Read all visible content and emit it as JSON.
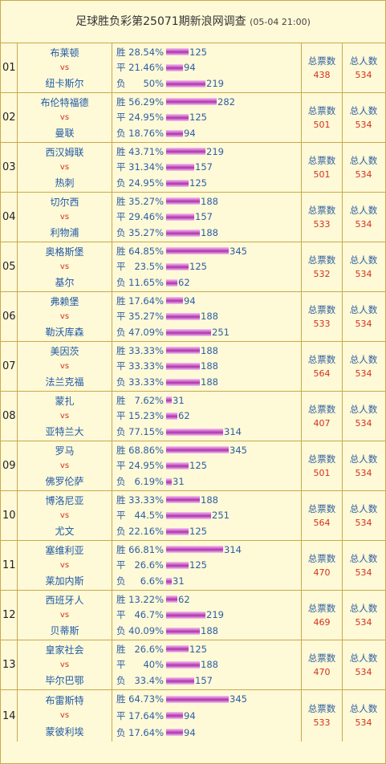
{
  "header": {
    "title": "足球胜负彩第25071期新浪网调查",
    "time": "(05-04 21:00)"
  },
  "labels": {
    "win": "胜",
    "draw": "平",
    "loss": "负",
    "vs": "vs",
    "total_votes": "总票数",
    "total_people": "总人数"
  },
  "matches": [
    {
      "no": "01",
      "home": "布莱顿",
      "away": "纽卡斯尔",
      "win_pct": "28.54%",
      "win": 125,
      "draw_pct": "21.46%",
      "draw": 94,
      "loss_pct": "50%",
      "loss": 219,
      "votes": "438",
      "people": "534"
    },
    {
      "no": "02",
      "home": "布伦特福德",
      "away": "曼联",
      "win_pct": "56.29%",
      "win": 282,
      "draw_pct": "24.95%",
      "draw": 125,
      "loss_pct": "18.76%",
      "loss": 94,
      "votes": "501",
      "people": "534"
    },
    {
      "no": "03",
      "home": "西汉姆联",
      "away": "热刺",
      "win_pct": "43.71%",
      "win": 219,
      "draw_pct": "31.34%",
      "draw": 157,
      "loss_pct": "24.95%",
      "loss": 125,
      "votes": "501",
      "people": "534"
    },
    {
      "no": "04",
      "home": "切尔西",
      "away": "利物浦",
      "win_pct": "35.27%",
      "win": 188,
      "draw_pct": "29.46%",
      "draw": 157,
      "loss_pct": "35.27%",
      "loss": 188,
      "votes": "533",
      "people": "534"
    },
    {
      "no": "05",
      "home": "奥格斯堡",
      "away": "基尔",
      "win_pct": "64.85%",
      "win": 345,
      "draw_pct": "23.5%",
      "draw": 125,
      "loss_pct": "11.65%",
      "loss": 62,
      "votes": "532",
      "people": "534"
    },
    {
      "no": "06",
      "home": "弗赖堡",
      "away": "勒沃库森",
      "win_pct": "17.64%",
      "win": 94,
      "draw_pct": "35.27%",
      "draw": 188,
      "loss_pct": "47.09%",
      "loss": 251,
      "votes": "533",
      "people": "534"
    },
    {
      "no": "07",
      "home": "美因茨",
      "away": "法兰克福",
      "win_pct": "33.33%",
      "win": 188,
      "draw_pct": "33.33%",
      "draw": 188,
      "loss_pct": "33.33%",
      "loss": 188,
      "votes": "564",
      "people": "534"
    },
    {
      "no": "08",
      "home": "蒙扎",
      "away": "亚特兰大",
      "win_pct": "7.62%",
      "win": 31,
      "draw_pct": "15.23%",
      "draw": 62,
      "loss_pct": "77.15%",
      "loss": 314,
      "votes": "407",
      "people": "534"
    },
    {
      "no": "09",
      "home": "罗马",
      "away": "佛罗伦萨",
      "win_pct": "68.86%",
      "win": 345,
      "draw_pct": "24.95%",
      "draw": 125,
      "loss_pct": "6.19%",
      "loss": 31,
      "votes": "501",
      "people": "534"
    },
    {
      "no": "10",
      "home": "博洛尼亚",
      "away": "尤文",
      "win_pct": "33.33%",
      "win": 188,
      "draw_pct": "44.5%",
      "draw": 251,
      "loss_pct": "22.16%",
      "loss": 125,
      "votes": "564",
      "people": "534"
    },
    {
      "no": "11",
      "home": "塞维利亚",
      "away": "莱加内斯",
      "win_pct": "66.81%",
      "win": 314,
      "draw_pct": "26.6%",
      "draw": 125,
      "loss_pct": "6.6%",
      "loss": 31,
      "votes": "470",
      "people": "534"
    },
    {
      "no": "12",
      "home": "西班牙人",
      "away": "贝蒂斯",
      "win_pct": "13.22%",
      "win": 62,
      "draw_pct": "46.7%",
      "draw": 219,
      "loss_pct": "40.09%",
      "loss": 188,
      "votes": "469",
      "people": "534"
    },
    {
      "no": "13",
      "home": "皇家社会",
      "away": "毕尔巴鄂",
      "win_pct": "26.6%",
      "win": 125,
      "draw_pct": "40%",
      "draw": 188,
      "loss_pct": "33.4%",
      "loss": 157,
      "votes": "470",
      "people": "534"
    },
    {
      "no": "14",
      "home": "布雷斯特",
      "away": "蒙彼利埃",
      "win_pct": "64.73%",
      "win": 345,
      "draw_pct": "17.64%",
      "draw": 94,
      "loss_pct": "17.64%",
      "loss": 94,
      "votes": "533",
      "people": "534"
    }
  ],
  "colors": {
    "border": "#c9a94b",
    "background": "#fef9d7",
    "text_blue": "#2d5fa3",
    "team_blue": "#1f5aa8",
    "accent_red": "#d2311f",
    "bar_purple": "#c04bbe"
  }
}
